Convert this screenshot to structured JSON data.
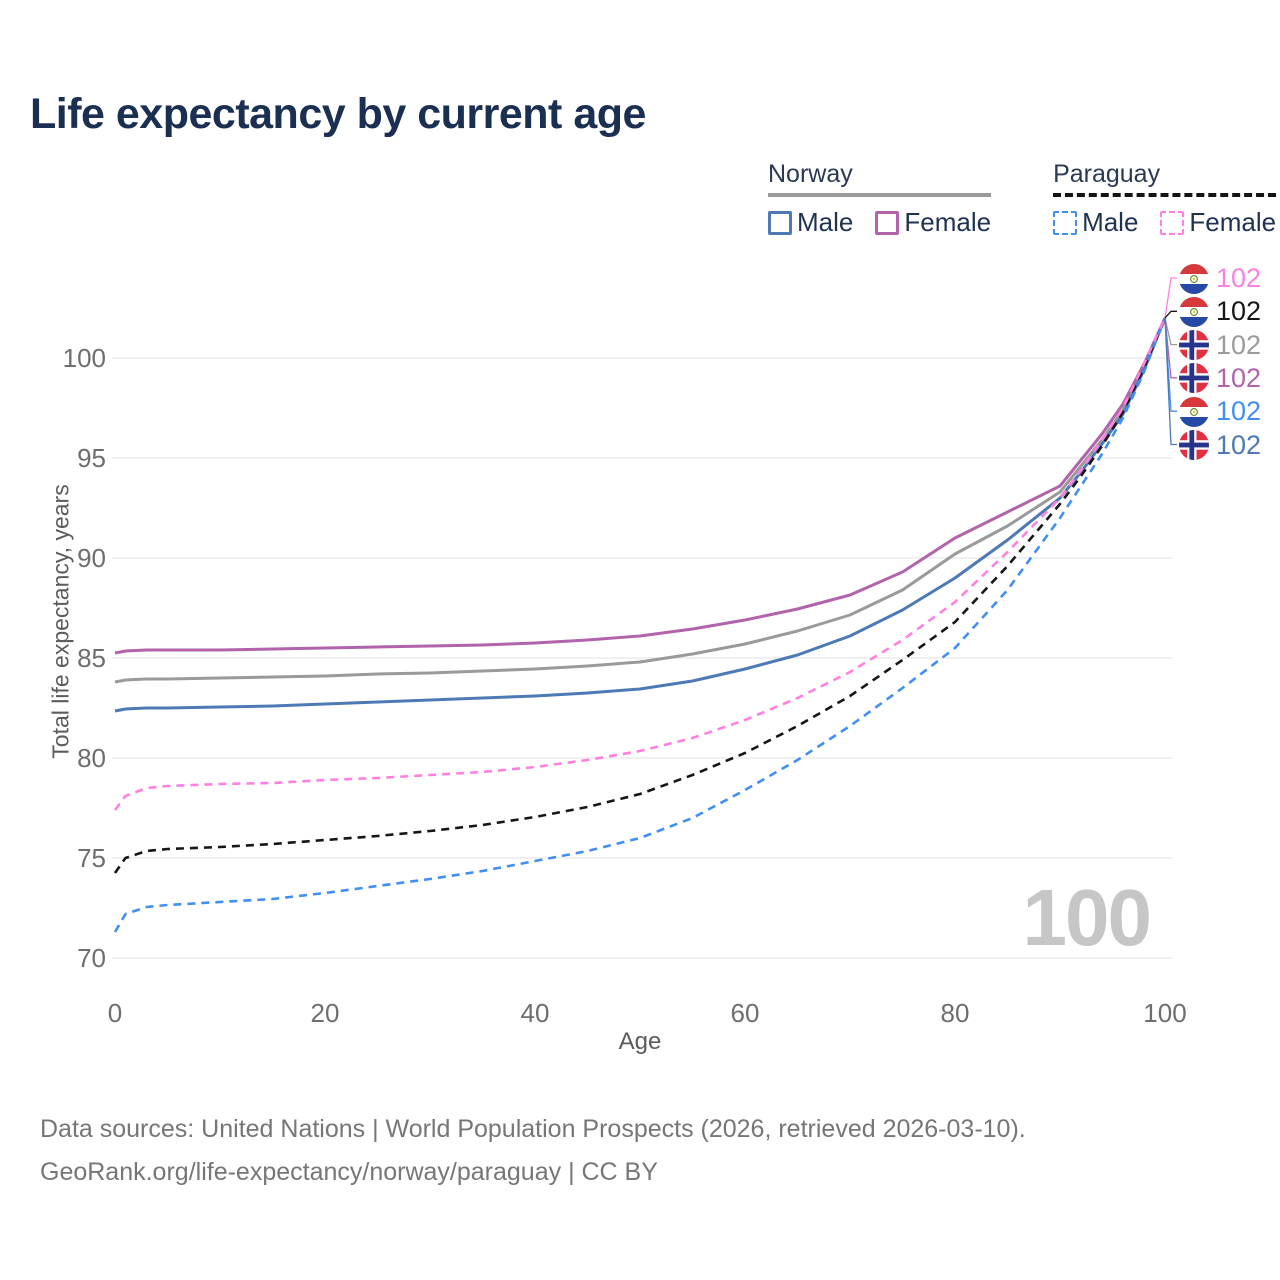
{
  "title": "Life expectancy by current age",
  "legend": {
    "groups": [
      {
        "country": "Norway",
        "line_style": "solid",
        "underline_color": "#9a9a9a",
        "items": [
          {
            "label": "Male",
            "color": "#4d79b5",
            "dashed": false
          },
          {
            "label": "Female",
            "color": "#b164ab",
            "dashed": false
          }
        ]
      },
      {
        "country": "Paraguay",
        "line_style": "dashed",
        "underline_color": "#141414",
        "items": [
          {
            "label": "Male",
            "color": "#418ff2",
            "dashed": true
          },
          {
            "label": "Female",
            "color": "#ff80e0",
            "dashed": true
          }
        ]
      }
    ]
  },
  "watermark_age": "100",
  "chart_data": {
    "type": "line",
    "title": "Life expectancy by current age",
    "xlabel": "Age",
    "ylabel": "Total life expectancy, years",
    "xlim": [
      0,
      100
    ],
    "ylim": [
      68.5,
      103
    ],
    "xticks": [
      0,
      20,
      40,
      60,
      80,
      100
    ],
    "yticks": [
      70,
      75,
      80,
      85,
      90,
      95,
      100
    ],
    "grid": true,
    "legend_position": "top-right",
    "grid_color": "#ececec",
    "x": [
      0,
      1,
      3,
      5,
      10,
      15,
      20,
      25,
      30,
      35,
      40,
      45,
      50,
      55,
      60,
      65,
      70,
      75,
      80,
      85,
      90,
      92,
      94,
      96,
      98,
      100
    ],
    "series": [
      {
        "name": "Norway Both sexes",
        "country": "Norway",
        "sex": "Both sexes",
        "color": "#9a9a9a",
        "dash": false,
        "values": [
          83.8,
          83.9,
          83.95,
          83.95,
          84.0,
          84.05,
          84.1,
          84.2,
          84.25,
          84.35,
          84.45,
          84.6,
          84.8,
          85.2,
          85.7,
          86.35,
          87.15,
          88.4,
          90.2,
          91.6,
          93.3,
          94.6,
          95.9,
          97.4,
          99.5,
          102
        ]
      },
      {
        "name": "Norway Female",
        "country": "Norway",
        "sex": "Female",
        "color": "#b164ab",
        "dash": false,
        "values": [
          85.25,
          85.35,
          85.4,
          85.4,
          85.4,
          85.45,
          85.5,
          85.55,
          85.6,
          85.65,
          85.75,
          85.9,
          86.1,
          86.45,
          86.9,
          87.45,
          88.15,
          89.3,
          91.0,
          92.3,
          93.6,
          94.9,
          96.2,
          97.7,
          99.7,
          102
        ]
      },
      {
        "name": "Norway Male",
        "country": "Norway",
        "sex": "Male",
        "color": "#4d79b5",
        "dash": false,
        "values": [
          82.35,
          82.45,
          82.5,
          82.5,
          82.55,
          82.6,
          82.7,
          82.8,
          82.9,
          83.0,
          83.1,
          83.25,
          83.45,
          83.85,
          84.45,
          85.15,
          86.1,
          87.4,
          89.0,
          90.9,
          93.0,
          94.3,
          95.7,
          97.2,
          99.4,
          102
        ]
      },
      {
        "name": "Paraguay Both sexes",
        "country": "Paraguay",
        "sex": "Both sexes",
        "color": "#161616",
        "dash": true,
        "values": [
          74.25,
          75.0,
          75.35,
          75.45,
          75.55,
          75.7,
          75.9,
          76.1,
          76.35,
          76.65,
          77.05,
          77.55,
          78.2,
          79.15,
          80.25,
          81.6,
          83.1,
          84.9,
          86.8,
          89.6,
          92.7,
          94.1,
          95.6,
          97.3,
          99.5,
          102
        ]
      },
      {
        "name": "Paraguay Male",
        "country": "Paraguay",
        "sex": "Male",
        "color": "#418ff2",
        "dash": true,
        "values": [
          71.3,
          72.2,
          72.55,
          72.65,
          72.8,
          72.95,
          73.25,
          73.6,
          73.95,
          74.35,
          74.85,
          75.35,
          76.0,
          77.0,
          78.4,
          79.9,
          81.6,
          83.5,
          85.5,
          88.4,
          92.0,
          93.6,
          95.2,
          97.0,
          99.3,
          102
        ]
      },
      {
        "name": "Paraguay Female",
        "country": "Paraguay",
        "sex": "Female",
        "color": "#ff80e0",
        "dash": true,
        "values": [
          77.4,
          78.1,
          78.5,
          78.6,
          78.7,
          78.75,
          78.9,
          79.0,
          79.15,
          79.3,
          79.55,
          79.9,
          80.35,
          81.0,
          81.9,
          83.0,
          84.3,
          85.9,
          87.8,
          90.3,
          93.0,
          94.4,
          95.9,
          97.5,
          99.7,
          102
        ]
      }
    ],
    "end_labels": [
      {
        "series": "Paraguay Female",
        "flag": "py",
        "value": "102",
        "color": "#ff80e0"
      },
      {
        "series": "Paraguay Both sexes",
        "flag": "py",
        "value": "102",
        "color": "#161616"
      },
      {
        "series": "Norway Both sexes",
        "flag": "no",
        "value": "102",
        "color": "#9a9a9a"
      },
      {
        "series": "Norway Female",
        "flag": "no",
        "value": "102",
        "color": "#b164ab"
      },
      {
        "series": "Paraguay Male",
        "flag": "py",
        "value": "102",
        "color": "#418ff2"
      },
      {
        "series": "Norway Male",
        "flag": "no",
        "value": "102",
        "color": "#4d79b5"
      }
    ]
  },
  "footer": {
    "sources": "Data sources: United Nations | World Population Prospects (2026, retrieved 2026-03-10).",
    "attribution": "GeoRank.org/life-expectancy/norway/paraguay | CC BY"
  }
}
